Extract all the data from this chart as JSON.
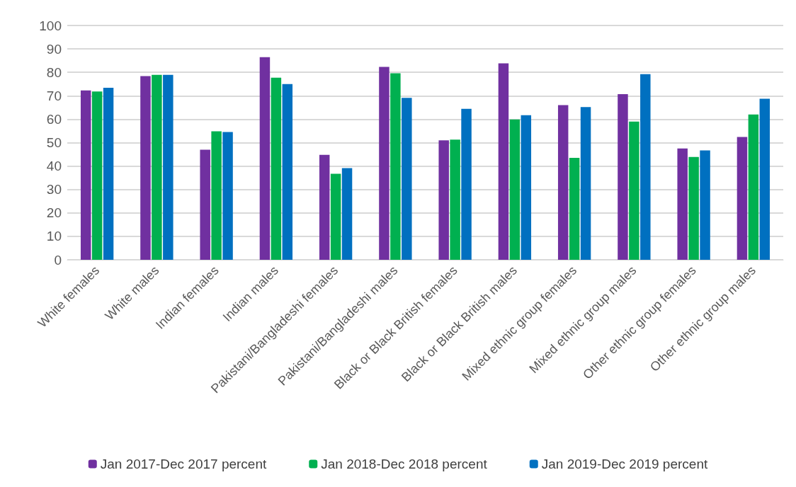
{
  "chart_data": {
    "type": "bar",
    "categories": [
      "White females",
      "White males",
      "Indian females",
      "Indian males",
      "Pakistani/Bangladeshi females",
      "Pakistani/Bangladeshi males",
      "Black or Black British females",
      "Black or Black British males",
      "Mixed ethnic group females",
      "Mixed ethnic group males",
      "Other ethnic group females",
      "Other ethnic group males"
    ],
    "series": [
      {
        "name": "Jan 2017-Dec 2017 percent",
        "color": "#7030a0",
        "values": [
          72.3,
          78.4,
          47.0,
          86.5,
          44.8,
          82.3,
          51.0,
          83.8,
          66.0,
          70.7,
          47.5,
          52.4
        ]
      },
      {
        "name": "Jan 2018-Dec 2018 percent",
        "color": "#00b050",
        "values": [
          71.8,
          78.9,
          54.8,
          77.7,
          36.7,
          79.6,
          51.3,
          59.9,
          43.5,
          59.0,
          43.9,
          62.0
        ]
      },
      {
        "name": "Jan 2019-Dec 2019 percent",
        "color": "#0070c0",
        "values": [
          73.4,
          78.9,
          54.5,
          75.0,
          39.1,
          69.1,
          64.4,
          61.7,
          65.2,
          79.2,
          46.7,
          68.7
        ]
      }
    ],
    "ylim": [
      0,
      100
    ],
    "yticks": [
      0,
      10,
      20,
      30,
      40,
      50,
      60,
      70,
      80,
      90,
      100
    ],
    "grid": "y",
    "legend": "bottom"
  }
}
